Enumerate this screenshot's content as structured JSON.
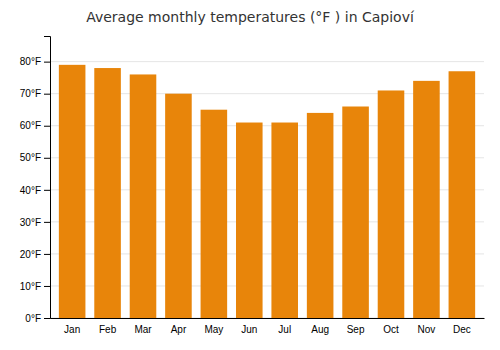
{
  "chart_data": {
    "type": "bar",
    "title": "Average monthly temperatures (°F ) in Capioví",
    "categories": [
      "Jan",
      "Feb",
      "Mar",
      "Apr",
      "May",
      "Jun",
      "Jul",
      "Aug",
      "Sep",
      "Oct",
      "Nov",
      "Dec"
    ],
    "values": [
      79,
      78,
      76,
      70,
      65,
      61,
      61,
      64,
      66,
      71,
      74,
      77
    ],
    "color": "#E8850A",
    "ylim": [
      0,
      88
    ],
    "yticks": [
      {
        "value": 0,
        "label": "0°F"
      },
      {
        "value": 10,
        "label": "10°F"
      },
      {
        "value": 20,
        "label": "20°F"
      },
      {
        "value": 30,
        "label": "30°F"
      },
      {
        "value": 40,
        "label": "40°F"
      },
      {
        "value": 50,
        "label": "50°F"
      },
      {
        "value": 60,
        "label": "60°F"
      },
      {
        "value": 70,
        "label": "70°F"
      },
      {
        "value": 80,
        "label": "80°F"
      }
    ],
    "grid": true
  }
}
